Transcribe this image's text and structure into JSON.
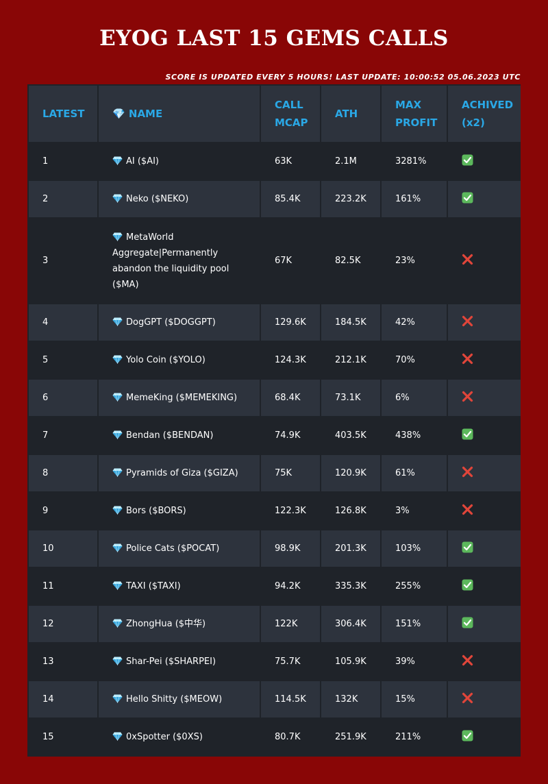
{
  "title": "EYOG LAST 15 GEMS CALLS",
  "subtitle": "SCORE IS UPDATED EVERY 5 HOURS! LAST UPDATE: 10:00:52 05.06.2023 UTC",
  "colors": {
    "background": "#890606",
    "table_dark": "#1f2329",
    "table_light": "#2d333d",
    "header_text": "#2aa8e6",
    "check": "#5cb85c",
    "cross": "#e0453a"
  },
  "headers": {
    "latest": "LATEST",
    "name": "💎 NAME",
    "call_mcap": "CALL MCAP",
    "ath": "ATH",
    "max_profit": "MAX PROFIT",
    "achived": "ACHIVED (x2)"
  },
  "row_icon": "gem-icon",
  "rows": [
    {
      "latest": "1",
      "name": "AI ($AI)",
      "call_mcap": "63K",
      "ath": "2.1M",
      "max_profit": "3281%",
      "achived": "check"
    },
    {
      "latest": "2",
      "name": "Neko ($NEKO)",
      "call_mcap": "85.4K",
      "ath": "223.2K",
      "max_profit": "161%",
      "achived": "check"
    },
    {
      "latest": "3",
      "name": "MetaWorld Aggregate|Permanently abandon the liquidity pool ($MA)",
      "call_mcap": "67K",
      "ath": "82.5K",
      "max_profit": "23%",
      "achived": "cross"
    },
    {
      "latest": "4",
      "name": "DogGPT ($DOGGPT)",
      "call_mcap": "129.6K",
      "ath": "184.5K",
      "max_profit": "42%",
      "achived": "cross"
    },
    {
      "latest": "5",
      "name": "Yolo Coin ($YOLO)",
      "call_mcap": "124.3K",
      "ath": "212.1K",
      "max_profit": "70%",
      "achived": "cross"
    },
    {
      "latest": "6",
      "name": "MemeKing ($MEMEKING)",
      "call_mcap": "68.4K",
      "ath": "73.1K",
      "max_profit": "6%",
      "achived": "cross"
    },
    {
      "latest": "7",
      "name": "Bendan ($BENDAN)",
      "call_mcap": "74.9K",
      "ath": "403.5K",
      "max_profit": "438%",
      "achived": "check"
    },
    {
      "latest": "8",
      "name": "Pyramids of Giza ($GIZA)",
      "call_mcap": "75K",
      "ath": "120.9K",
      "max_profit": "61%",
      "achived": "cross"
    },
    {
      "latest": "9",
      "name": "Bors ($BORS)",
      "call_mcap": "122.3K",
      "ath": "126.8K",
      "max_profit": "3%",
      "achived": "cross"
    },
    {
      "latest": "10",
      "name": "Police Cats ($POCAT)",
      "call_mcap": "98.9K",
      "ath": "201.3K",
      "max_profit": "103%",
      "achived": "check"
    },
    {
      "latest": "11",
      "name": "TAXI ($TAXI)",
      "call_mcap": "94.2K",
      "ath": "335.3K",
      "max_profit": "255%",
      "achived": "check"
    },
    {
      "latest": "12",
      "name": "ZhongHua ($中华)",
      "call_mcap": "122K",
      "ath": "306.4K",
      "max_profit": "151%",
      "achived": "check"
    },
    {
      "latest": "13",
      "name": "Shar-Pei ($SHARPEI)",
      "call_mcap": "75.7K",
      "ath": "105.9K",
      "max_profit": "39%",
      "achived": "cross"
    },
    {
      "latest": "14",
      "name": "Hello Shitty ($MEOW)",
      "call_mcap": "114.5K",
      "ath": "132K",
      "max_profit": "15%",
      "achived": "cross"
    },
    {
      "latest": "15",
      "name": "0xSpotter ($0XS)",
      "call_mcap": "80.7K",
      "ath": "251.9K",
      "max_profit": "211%",
      "achived": "check"
    }
  ]
}
